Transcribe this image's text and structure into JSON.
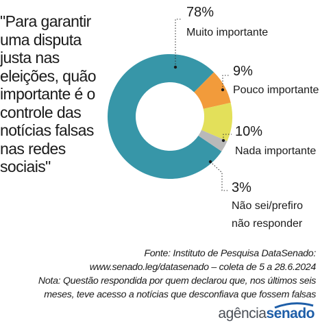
{
  "question": "\"Para garantir uma disputa justa nas eleições, quão importante é o controle das notícias falsas nas redes sociais\"",
  "chart_data": {
    "type": "pie",
    "variant": "donut",
    "categories": [
      "Muito importante",
      "Pouco importante",
      "Nada importante",
      "Não sei/prefiro não responder"
    ],
    "values": [
      78,
      9,
      10,
      3
    ],
    "value_labels": [
      "78%",
      "9%",
      "10%",
      "3%"
    ],
    "label_lines": [
      [
        "Muito importante"
      ],
      [
        "Pouco importante"
      ],
      [
        "Nada importante"
      ],
      [
        "Não sei/prefiro",
        "não responder"
      ]
    ],
    "colors": [
      "#3796a8",
      "#f29b3b",
      "#e3e05a",
      "#b9b9b9"
    ]
  },
  "footer": {
    "source_line1": "Fonte: Instituto de Pesquisa DataSenado:",
    "source_line2": "www.senado.leg/datasenado – coleta de 5 a 28.6.2024",
    "note_line1": "Nota: Questão respondida por quem declarou que, nos últimos seis",
    "note_line2": "meses, teve acesso a notícias que desconfiava que fossem falsas"
  },
  "logo": {
    "part1": "agência",
    "part2": "senado"
  }
}
